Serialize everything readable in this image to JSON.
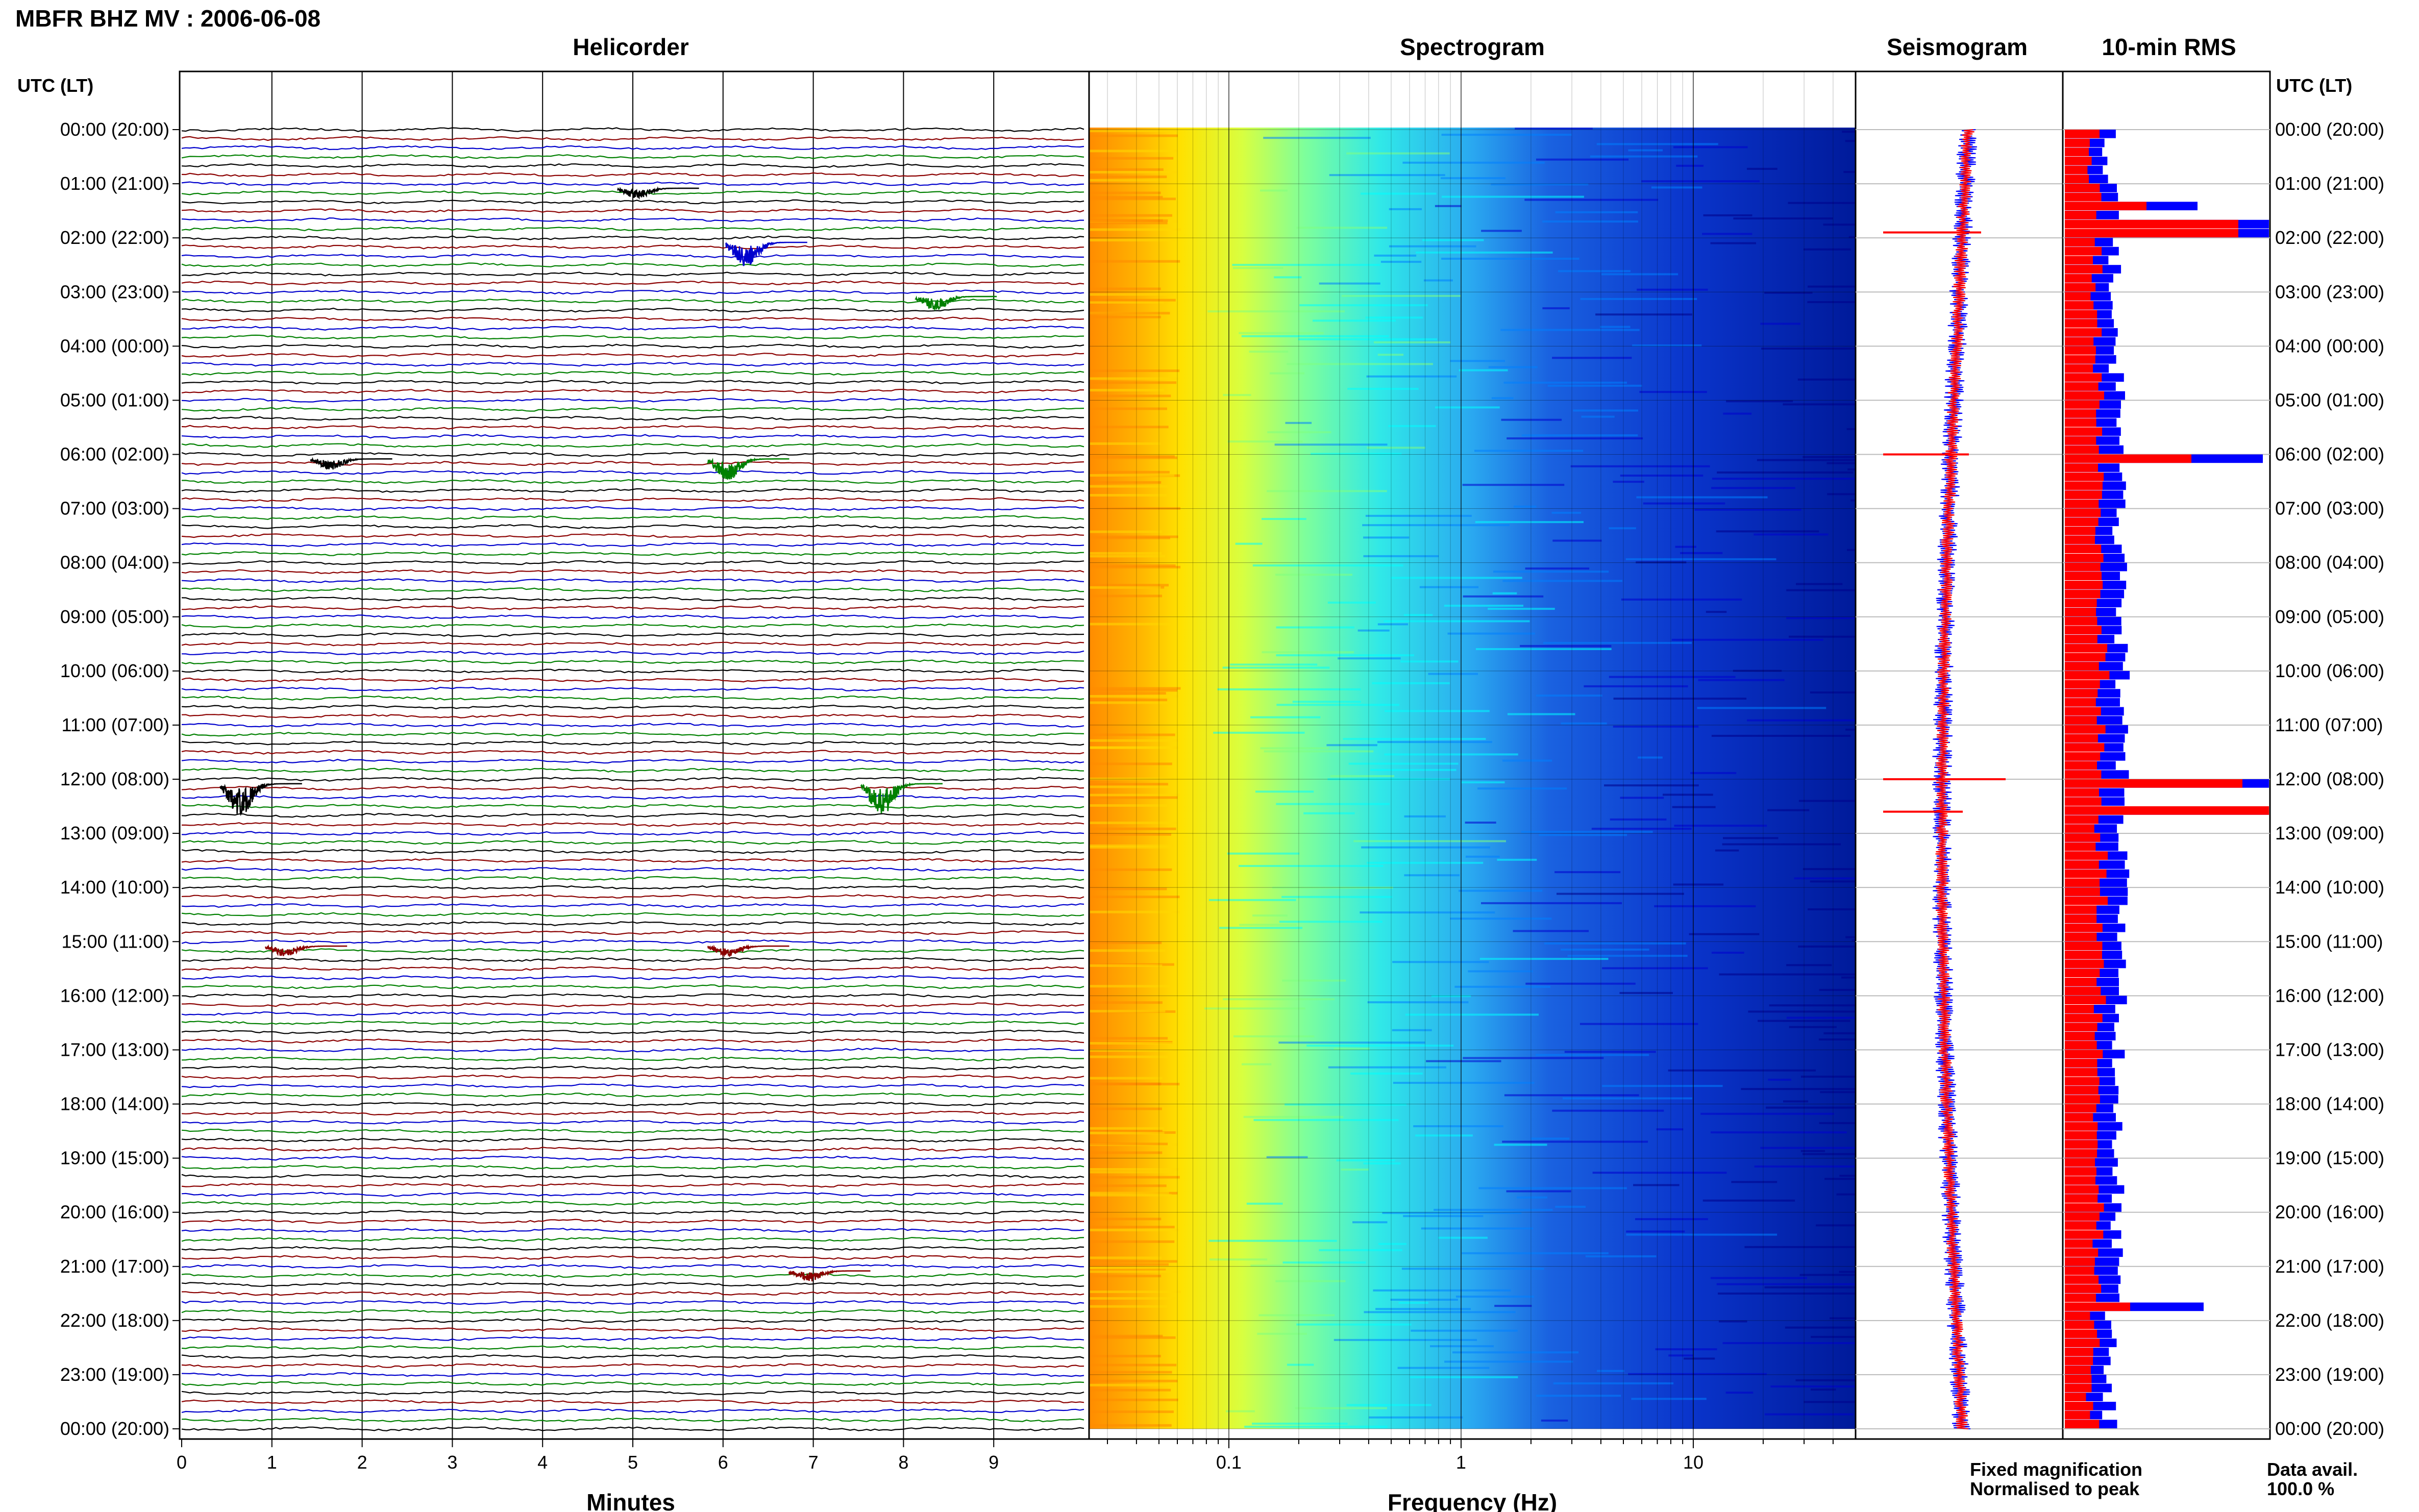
{
  "header": {
    "title": "MBFR BHZ MV : 2006-06-08"
  },
  "chart_data": [
    {
      "type": "line",
      "title": "Helicorder",
      "xlabel": "Minutes",
      "ylabel": "UTC (LT)",
      "xlim": [
        0,
        10
      ],
      "x_ticks": [
        "0",
        "1",
        "2",
        "3",
        "4",
        "5",
        "6",
        "7",
        "8",
        "9"
      ],
      "row_labels": [
        "00:00 (20:00)",
        "01:00 (21:00)",
        "02:00 (22:00)",
        "03:00 (23:00)",
        "04:00 (00:00)",
        "05:00 (01:00)",
        "06:00 (02:00)",
        "07:00 (03:00)",
        "08:00 (04:00)",
        "09:00 (05:00)",
        "10:00 (06:00)",
        "11:00 (07:00)",
        "12:00 (08:00)",
        "13:00 (09:00)",
        "14:00 (10:00)",
        "15:00 (11:00)",
        "16:00 (12:00)",
        "17:00 (13:00)",
        "18:00 (14:00)",
        "19:00 (15:00)",
        "20:00 (16:00)",
        "21:00 (17:00)",
        "22:00 (18:00)",
        "23:00 (19:00)",
        "00:00 (20:00)"
      ],
      "trace_colors": [
        "#000000",
        "#8b0000",
        "#0000cd",
        "#008000"
      ],
      "events": [
        {
          "row": 2,
          "minute": 6.3,
          "amp": 7,
          "color": "#0000cd"
        },
        {
          "row": 3,
          "minute": 8.4,
          "amp": 4,
          "color": "#008000"
        },
        {
          "row": 1,
          "minute": 5.1,
          "amp": 3,
          "color": "#000000"
        },
        {
          "row": 12,
          "minute": 0.7,
          "amp": 9,
          "color": "#000000"
        },
        {
          "row": 12,
          "minute": 7.8,
          "amp": 9,
          "color": "#008000"
        },
        {
          "row": 6,
          "minute": 6.1,
          "amp": 6,
          "color": "#008000"
        },
        {
          "row": 6,
          "minute": 1.7,
          "amp": 3,
          "color": "#000000"
        },
        {
          "row": 15,
          "minute": 1.2,
          "amp": 3,
          "color": "#8b0000"
        },
        {
          "row": 15,
          "minute": 6.1,
          "amp": 3,
          "color": "#8b0000"
        },
        {
          "row": 21,
          "minute": 7.0,
          "amp": 3,
          "color": "#8b0000"
        }
      ]
    },
    {
      "type": "heatmap",
      "title": "Spectrogram",
      "xlabel": "Frequency (Hz)",
      "x_scale": "log",
      "xlim": [
        0.025,
        50
      ],
      "x_ticks": [
        "0.1",
        "1",
        "10"
      ],
      "colormap": [
        "#ff8c00",
        "#ffd700",
        "#ffff00",
        "#7fff7f",
        "#00ffff",
        "#0080ff",
        "#0000cd",
        "#00008b"
      ]
    },
    {
      "type": "line",
      "title": "Seismogram",
      "series": [
        {
          "name": "Fixed magnification",
          "color": "#0000ff"
        },
        {
          "name": "Normalised to peak",
          "color": "#ff0000"
        }
      ],
      "spikes": [
        {
          "hour": 1.9,
          "size": 1.6
        },
        {
          "hour": 6.0,
          "size": 1.4
        },
        {
          "hour": 12.0,
          "size": 2.0
        },
        {
          "hour": 12.6,
          "size": 1.3
        }
      ]
    },
    {
      "type": "bar",
      "title": "10-min RMS",
      "ylabel": "UTC (LT)",
      "row_labels": [
        "00:00 (20:00)",
        "01:00 (21:00)",
        "02:00 (22:00)",
        "03:00 (23:00)",
        "04:00 (00:00)",
        "05:00 (01:00)",
        "06:00 (02:00)",
        "07:00 (03:00)",
        "08:00 (04:00)",
        "09:00 (05:00)",
        "10:00 (06:00)",
        "11:00 (07:00)",
        "12:00 (08:00)",
        "13:00 (09:00)",
        "14:00 (10:00)",
        "15:00 (11:00)",
        "16:00 (12:00)",
        "17:00 (13:00)",
        "18:00 (14:00)",
        "19:00 (15:00)",
        "20:00 (16:00)",
        "21:00 (17:00)",
        "22:00 (18:00)",
        "23:00 (19:00)",
        "00:00 (20:00)"
      ],
      "series": [
        {
          "name": "Fixed magnification",
          "color": "#0000ff"
        },
        {
          "name": "Normalised to peak",
          "color": "#ff0000"
        }
      ],
      "peaks": [
        {
          "hour": 1.4,
          "blue": 0.65,
          "red": 0.4
        },
        {
          "hour": 1.75,
          "blue": 1.0,
          "red": 0.85
        },
        {
          "hour": 6.0,
          "blue": 0.97,
          "red": 0.62
        },
        {
          "hour": 12.0,
          "blue": 1.0,
          "red": 0.87
        },
        {
          "hour": 12.55,
          "blue": 1.0,
          "red": 1.0
        },
        {
          "hour": 21.6,
          "blue": 0.68,
          "red": 0.32
        }
      ]
    }
  ],
  "legend": {
    "fixed": "Fixed magnification",
    "normalised": "Normalised to peak",
    "fixed_color": "#0000ff",
    "normalised_color": "#ff0000"
  },
  "data_avail": {
    "label": "Data avail.",
    "value": "100.0 %"
  }
}
